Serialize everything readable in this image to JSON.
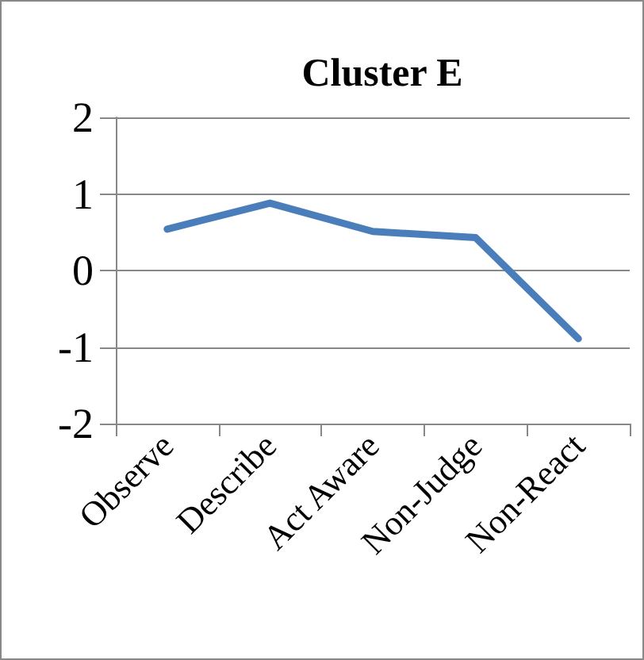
{
  "chart_data": {
    "type": "line",
    "title": "Cluster E",
    "categories": [
      "Observe",
      "Describe",
      "Act Aware",
      "Non-Judge",
      "Non-React"
    ],
    "series": [
      {
        "color": "#4a7ebb",
        "values": [
          0.54,
          0.88,
          0.51,
          0.43,
          -0.89
        ]
      }
    ],
    "ylim": [
      -2,
      2
    ],
    "yticks": [
      -2,
      -1,
      0,
      1,
      2
    ],
    "grid": "y",
    "marker": "none",
    "line_style": "solid"
  }
}
